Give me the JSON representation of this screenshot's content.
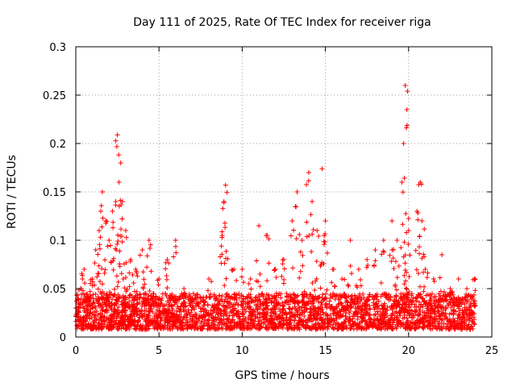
{
  "chart_data": {
    "type": "scatter",
    "title": "Day 111 of 2025, Rate Of TEC Index for receiver riga",
    "xlabel": "GPS time / hours",
    "ylabel": "ROTI / TECUs",
    "xlim": [
      0,
      25
    ],
    "ylim": [
      0,
      0.3
    ],
    "xticks": [
      0,
      5,
      10,
      15,
      20,
      25
    ],
    "xtick_labels": [
      "0",
      "5",
      "10",
      "15",
      "20",
      "25"
    ],
    "yticks": [
      0,
      0.05,
      0.1,
      0.15,
      0.2,
      0.25,
      0.3
    ],
    "ytick_labels": [
      "0",
      "0.05",
      "0.1",
      "0.15",
      "0.2",
      "0.25",
      "0.3"
    ],
    "grid": true,
    "marker": "plus",
    "series": [
      {
        "color": "#ff0000",
        "points": [
          [
            0.1,
            0.03
          ],
          [
            0.3,
            0.05
          ],
          [
            0.5,
            0.07
          ],
          [
            0.7,
            0.04
          ],
          [
            1.0,
            0.06
          ],
          [
            1.2,
            0.09
          ],
          [
            1.4,
            0.11
          ],
          [
            1.5,
            0.13
          ],
          [
            1.6,
            0.15
          ],
          [
            1.8,
            0.12
          ],
          [
            2.0,
            0.1
          ],
          [
            2.2,
            0.13
          ],
          [
            2.4,
            0.14
          ],
          [
            2.5,
            0.209
          ],
          [
            2.6,
            0.16
          ],
          [
            2.7,
            0.18
          ],
          [
            2.8,
            0.14
          ],
          [
            3.0,
            0.11
          ],
          [
            3.3,
            0.08
          ],
          [
            3.6,
            0.07
          ],
          [
            4.0,
            0.09
          ],
          [
            4.4,
            0.1
          ],
          [
            5.0,
            0.06
          ],
          [
            5.5,
            0.08
          ],
          [
            6.0,
            0.1
          ],
          [
            6.5,
            0.05
          ],
          [
            7.0,
            0.04
          ],
          [
            8.0,
            0.06
          ],
          [
            8.8,
            0.105
          ],
          [
            8.9,
            0.14
          ],
          [
            9.0,
            0.157
          ],
          [
            9.5,
            0.07
          ],
          [
            10.0,
            0.07
          ],
          [
            10.5,
            0.06
          ],
          [
            11.0,
            0.115
          ],
          [
            11.5,
            0.105
          ],
          [
            12.0,
            0.07
          ],
          [
            12.5,
            0.08
          ],
          [
            13.0,
            0.12
          ],
          [
            13.3,
            0.15
          ],
          [
            13.6,
            0.1
          ],
          [
            14.0,
            0.17
          ],
          [
            14.2,
            0.14
          ],
          [
            14.5,
            0.11
          ],
          [
            14.8,
            0.174
          ],
          [
            15.0,
            0.12
          ],
          [
            15.5,
            0.07
          ],
          [
            16.0,
            0.06
          ],
          [
            16.5,
            0.1
          ],
          [
            17.0,
            0.07
          ],
          [
            17.5,
            0.08
          ],
          [
            18.0,
            0.09
          ],
          [
            18.5,
            0.1
          ],
          [
            19.0,
            0.12
          ],
          [
            19.3,
            0.1
          ],
          [
            19.6,
            0.16
          ],
          [
            19.7,
            0.2
          ],
          [
            19.8,
            0.26
          ],
          [
            19.9,
            0.235
          ],
          [
            20.0,
            0.11
          ],
          [
            20.5,
            0.13
          ],
          [
            20.7,
            0.16
          ],
          [
            20.8,
            0.12
          ],
          [
            21.0,
            0.07
          ],
          [
            21.5,
            0.06
          ],
          [
            22.0,
            0.085
          ],
          [
            22.5,
            0.05
          ],
          [
            23.0,
            0.06
          ],
          [
            23.5,
            0.05
          ],
          [
            24.0,
            0.06
          ]
        ],
        "baseline_band": {
          "x_range": [
            0,
            24
          ],
          "y_range": [
            0.008,
            0.045
          ],
          "density_per_hour": 120
        }
      }
    ]
  }
}
